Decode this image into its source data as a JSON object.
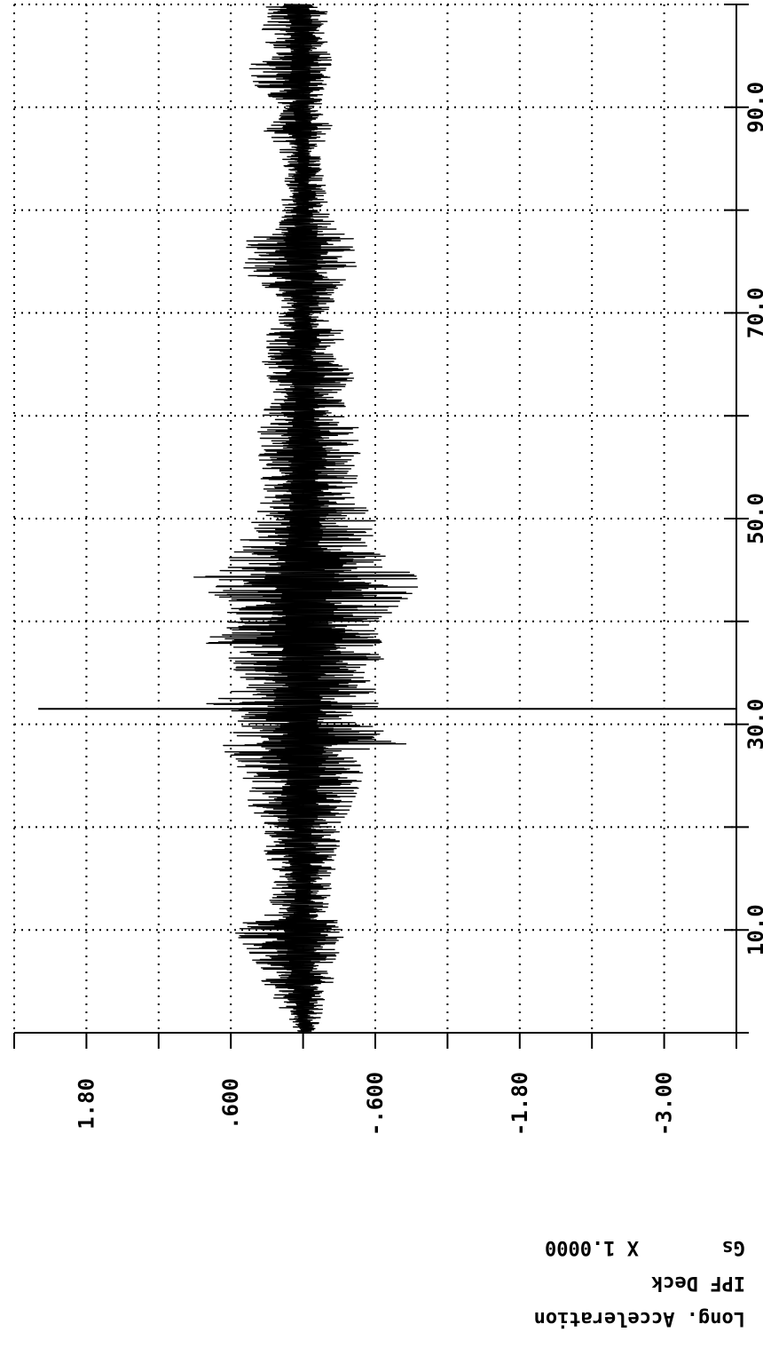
{
  "chart_data": {
    "type": "line",
    "x_ticks": [
      "10.0",
      "30.0",
      "50.0",
      "70.0",
      "90.0"
    ],
    "x_tick_values": [
      10,
      30,
      50,
      70,
      90
    ],
    "y_ticks": [
      "1.80",
      ".600",
      "-.600",
      "-1.80",
      "-3.00"
    ],
    "y_tick_values": [
      1.8,
      0.6,
      -0.6,
      -1.8,
      -3.0
    ],
    "xlim": [
      0,
      100
    ],
    "ylim": [
      -3.6,
      2.4
    ],
    "grid": true,
    "rotated": "plot printed rotated 180 degrees (text upside down)",
    "labels": {
      "line1": "Long. Acceleration",
      "line2": "IPF Deck",
      "units": "Gs",
      "scale": "X 1.0000"
    },
    "series": [
      {
        "envelope_x": [
          0,
          5,
          8,
          10,
          12,
          15,
          18,
          20,
          22,
          25,
          27,
          28,
          30,
          32,
          33,
          35,
          37,
          38,
          40,
          42,
          44,
          45,
          47,
          50,
          52,
          55,
          58,
          60,
          62,
          64,
          66,
          68,
          70,
          72,
          74,
          76,
          77,
          78,
          80,
          82,
          84,
          86,
          88,
          90,
          92,
          94,
          96,
          98,
          100
        ],
        "envelope_max": [
          0.05,
          0.35,
          0.45,
          0.6,
          0.3,
          0.25,
          0.35,
          0.3,
          0.45,
          0.5,
          0.6,
          0.75,
          0.5,
          0.8,
          0.6,
          0.55,
          0.7,
          0.85,
          0.65,
          0.7,
          1.0,
          0.7,
          0.55,
          0.45,
          0.35,
          0.35,
          0.4,
          0.35,
          0.25,
          0.4,
          0.3,
          0.3,
          0.2,
          0.25,
          0.5,
          0.45,
          0.5,
          0.25,
          0.2,
          0.15,
          0.15,
          0.2,
          0.35,
          0.15,
          0.4,
          0.45,
          0.3,
          0.35,
          0.35
        ],
        "envelope_min": [
          -0.1,
          -0.25,
          -0.3,
          -0.35,
          -0.2,
          -0.25,
          -0.3,
          -0.3,
          -0.4,
          -0.5,
          -0.45,
          -0.9,
          -0.55,
          -0.65,
          -0.6,
          -0.6,
          -0.7,
          -0.65,
          -0.65,
          -0.85,
          -1.0,
          -0.85,
          -0.6,
          -0.6,
          -0.45,
          -0.45,
          -0.5,
          -0.4,
          -0.3,
          -0.45,
          -0.3,
          -0.35,
          -0.2,
          -0.3,
          -0.45,
          -0.45,
          -0.45,
          -0.3,
          -0.2,
          -0.2,
          -0.15,
          -0.15,
          -0.25,
          -0.15,
          -0.2,
          -0.25,
          -0.2,
          -0.2,
          -0.2
        ],
        "spikes": [
          {
            "x": 31.5,
            "min": -3.6,
            "max": 2.2
          }
        ]
      }
    ]
  }
}
